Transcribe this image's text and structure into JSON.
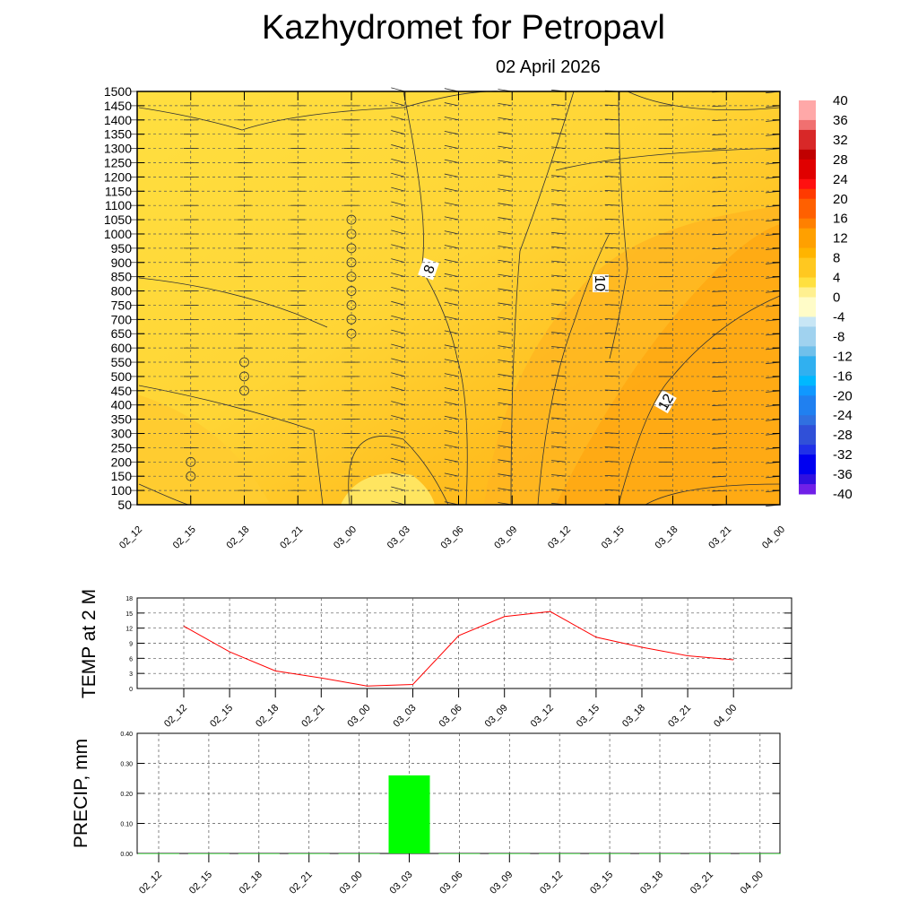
{
  "title": "Kazhydromet  for Petropavl",
  "date": "02 April 2026",
  "chart_data": [
    {
      "type": "heatmap",
      "name": "cross-section",
      "xlabels": [
        "02_12",
        "02_15",
        "02_18",
        "02_21",
        "03_00",
        "03_03",
        "03_06",
        "03_09",
        "03_12",
        "03_15",
        "03_18",
        "03_21",
        "04_00"
      ],
      "ylabels": [
        "1500",
        "1450",
        "1400",
        "1350",
        "1300",
        "1250",
        "1200",
        "1150",
        "1100",
        "1050",
        "1000",
        "950",
        "900",
        "850",
        "800",
        "750",
        "700",
        "650",
        "600",
        "550",
        "500",
        "450",
        "400",
        "350",
        "300",
        "250",
        "200",
        "150",
        "100",
        "50"
      ],
      "contour_labels": [
        "8",
        "10",
        "12"
      ],
      "colorbar": {
        "labels": [
          "40",
          "36",
          "32",
          "28",
          "24",
          "20",
          "16",
          "12",
          "8",
          "4",
          "0",
          "-4",
          "-8",
          "-12",
          "-16",
          "-20",
          "-24",
          "-28",
          "-32",
          "-36",
          "-40"
        ],
        "range": [
          -40,
          40
        ]
      }
    },
    {
      "type": "line",
      "ylabel": "TEMP at 2 M",
      "categories": [
        "02_12",
        "02_15",
        "02_18",
        "02_21",
        "03_00",
        "03_03",
        "03_06",
        "03_09",
        "03_12",
        "03_15",
        "03_18",
        "03_21",
        "04_00"
      ],
      "values": [
        12.4,
        7.3,
        3.5,
        2.1,
        0.5,
        0.8,
        10.5,
        14.3,
        15.3,
        10.2,
        8.2,
        6.5,
        5.7
      ],
      "yticks": [
        "0",
        "3",
        "6",
        "9",
        "12",
        "15",
        "18"
      ],
      "ylim": [
        0,
        18
      ],
      "color": "#ff0000"
    },
    {
      "type": "bar",
      "ylabel": "PRECIP, mm",
      "categories": [
        "02_12",
        "02_15",
        "02_18",
        "02_21",
        "03_00",
        "03_03",
        "03_06",
        "03_09",
        "03_12",
        "03_15",
        "03_18",
        "03_21",
        "04_00"
      ],
      "values": [
        0,
        0,
        0,
        0,
        0,
        0.26,
        0,
        0,
        0,
        0,
        0,
        0,
        0
      ],
      "yticks": [
        "0.00",
        "0.10",
        "0.20",
        "0.30",
        "0.40"
      ],
      "ylim": [
        0,
        0.4
      ],
      "color": "#00ff00"
    }
  ]
}
